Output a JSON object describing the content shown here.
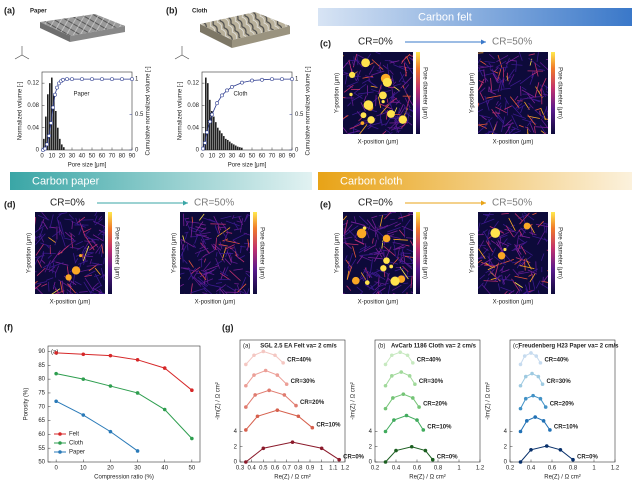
{
  "chart_data": [
    {
      "type": "histogram",
      "panel": "(a)",
      "title": "Paper",
      "annotation": "Paper",
      "xlabel": "Pore size [μm]",
      "ylabel": "Normalized volume [-]",
      "y2label": "Cumulative normalized volume [-]",
      "bins": [
        1,
        3,
        5,
        7,
        9,
        11,
        13,
        15,
        17,
        19,
        21,
        23
      ],
      "counts": [
        0.02,
        0.06,
        0.1,
        0.12,
        0.13,
        0.1,
        0.07,
        0.04,
        0.02,
        0.01,
        0.005
      ],
      "color": "#222222",
      "cumulative": {
        "x": [
          1,
          3,
          5,
          7,
          9,
          11,
          13,
          15,
          17,
          19,
          21,
          25,
          30,
          40,
          50,
          60,
          70,
          80,
          90
        ],
        "values": [
          0,
          0.02,
          0.08,
          0.2,
          0.38,
          0.6,
          0.78,
          0.88,
          0.94,
          0.97,
          0.99,
          1,
          1,
          1,
          1,
          1,
          1,
          1,
          1
        ],
        "color": "#2b3a8f"
      },
      "xlim": [
        0,
        90
      ],
      "xticks": [
        0,
        10,
        20,
        30,
        40,
        50,
        60,
        70,
        80,
        90
      ],
      "ylim": [
        0,
        0.14
      ],
      "yticks": [
        0,
        0.04,
        0.08,
        0.12
      ],
      "y2lim": [
        0,
        1.1
      ],
      "y2ticks": [
        0,
        0.5,
        1
      ]
    },
    {
      "type": "histogram",
      "panel": "(b)",
      "title": "Cloth",
      "annotation": "Cloth",
      "xlabel": "Pore size [μm]",
      "ylabel": "Normalized volume [-]",
      "y2label": "Cumulative normalized volume [-]",
      "bins": [
        1,
        3,
        5,
        7,
        9,
        11,
        13,
        15,
        17,
        19,
        21,
        23,
        25,
        27,
        29,
        31,
        33,
        35,
        37,
        39,
        41
      ],
      "counts": [
        0.03,
        0.13,
        0.12,
        0.09,
        0.07,
        0.06,
        0.05,
        0.04,
        0.035,
        0.03,
        0.025,
        0.02,
        0.018,
        0.015,
        0.012,
        0.01,
        0.008,
        0.006,
        0.005,
        0.004
      ],
      "color": "#222222",
      "cumulative": {
        "x": [
          1,
          3,
          5,
          8,
          10,
          15,
          20,
          25,
          30,
          40,
          50,
          60,
          70,
          80,
          90
        ],
        "values": [
          0.02,
          0.1,
          0.25,
          0.4,
          0.5,
          0.66,
          0.77,
          0.84,
          0.89,
          0.95,
          0.98,
          0.99,
          1,
          1,
          1
        ],
        "color": "#2b3a8f"
      },
      "xlim": [
        0,
        90
      ],
      "xticks": [
        0,
        10,
        20,
        30,
        40,
        50,
        60,
        70,
        80,
        90
      ],
      "ylim": [
        0,
        0.14
      ],
      "yticks": [
        0,
        0.04,
        0.08,
        0.12
      ],
      "y2lim": [
        0,
        1.1
      ],
      "y2ticks": [
        0,
        0.5,
        1
      ]
    },
    {
      "type": "line",
      "panel": "(f)",
      "subpanel": "(a)",
      "xlabel": "Compression ratio (%)",
      "ylabel": "Porosity (%)",
      "x": [
        0,
        10,
        20,
        30,
        40,
        50
      ],
      "series": [
        {
          "name": "Felt",
          "color": "#d62728",
          "values": [
            89.5,
            89,
            88.5,
            87,
            84,
            76
          ]
        },
        {
          "name": "Cloth",
          "color": "#2e9e4f",
          "values": [
            82,
            80,
            77.5,
            75,
            69,
            58.5
          ]
        },
        {
          "name": "Paper",
          "color": "#2a7ab8",
          "values": [
            72,
            67,
            61,
            54,
            null,
            null
          ]
        }
      ],
      "xlim": [
        -3,
        53
      ],
      "xticks": [
        0,
        10,
        20,
        30,
        40,
        50
      ],
      "ylim": [
        50,
        92
      ],
      "yticks": [
        50,
        55,
        60,
        65,
        70,
        75,
        80,
        85,
        90
      ],
      "legend": "lower left",
      "markers": true
    },
    {
      "type": "line",
      "panel": "(g)",
      "subpanel": "(a)",
      "title": "SGL 2.5 EA Felt  va= 2 cm/s",
      "title_color": "#d62728",
      "xlabel": "Re(Z) / Ω cm²",
      "ylabel": "-Im(Z) / Ω cm²",
      "series": [
        {
          "name": "CR=40%",
          "color": "#f4c7c2",
          "x": [
            0.35,
            0.42,
            0.5,
            0.6,
            0.67
          ],
          "values": [
            12.8,
            14,
            14.5,
            14,
            13
          ]
        },
        {
          "name": "CR=30%",
          "color": "#ec9f97",
          "x": [
            0.35,
            0.42,
            0.52,
            0.62,
            0.7
          ],
          "values": [
            10,
            11.4,
            12,
            11.4,
            10.2
          ]
        },
        {
          "name": "CR=20%",
          "color": "#e07b6f",
          "x": [
            0.35,
            0.43,
            0.55,
            0.68,
            0.78
          ],
          "values": [
            7.2,
            8.8,
            9.4,
            8.8,
            7.4
          ]
        },
        {
          "name": "CR=10%",
          "color": "#d6604d",
          "x": [
            0.35,
            0.45,
            0.62,
            0.8,
            0.92
          ],
          "values": [
            4.2,
            6,
            6.8,
            6,
            4.5
          ]
        },
        {
          "name": "CR=0%",
          "color": "#8b1a2b",
          "x": [
            0.35,
            0.5,
            0.75,
            1,
            1.15
          ],
          "values": [
            0,
            1.8,
            2.6,
            1.8,
            0.3
          ]
        }
      ],
      "xlim": [
        0.3,
        1.2
      ],
      "xticks": [
        0.3,
        0.4,
        0.5,
        0.6,
        0.7,
        0.8,
        0.9,
        1,
        1.1,
        1.2
      ],
      "ylim": [
        0,
        16
      ],
      "yticks": [
        0,
        2,
        4
      ],
      "markers": true
    },
    {
      "type": "line",
      "subpanel": "(b)",
      "title": "AvCarb 1186 Cloth  va= 2 cm/s",
      "title_color": "#2e9e4f",
      "xlabel": "Re(Z) / Ω cm²",
      "ylabel": "-Im(Z) / Ω cm²",
      "series": [
        {
          "name": "CR=40%",
          "color": "#c7e9c0",
          "x": [
            0.3,
            0.36,
            0.44,
            0.51,
            0.56
          ],
          "values": [
            12.8,
            14,
            14.4,
            14,
            13
          ]
        },
        {
          "name": "CR=30%",
          "color": "#a1d99b",
          "x": [
            0.3,
            0.36,
            0.45,
            0.53,
            0.58
          ],
          "values": [
            10,
            11.3,
            11.8,
            11.3,
            10.2
          ]
        },
        {
          "name": "CR=20%",
          "color": "#74c476",
          "x": [
            0.3,
            0.37,
            0.47,
            0.56,
            0.62
          ],
          "values": [
            7,
            8.4,
            8.9,
            8.4,
            7.2
          ]
        },
        {
          "name": "CR=10%",
          "color": "#41ab5d",
          "x": [
            0.3,
            0.38,
            0.5,
            0.6,
            0.66
          ],
          "values": [
            4,
            5.5,
            6.1,
            5.5,
            4.2
          ]
        },
        {
          "name": "CR=0%",
          "color": "#1b5e20",
          "x": [
            0.3,
            0.4,
            0.55,
            0.68,
            0.75
          ],
          "values": [
            0,
            1.5,
            2,
            1.5,
            0.3
          ]
        }
      ],
      "xlim": [
        0.2,
        1.2
      ],
      "xticks": [
        0.2,
        0.4,
        0.6,
        0.8,
        1,
        1.2
      ],
      "ylim": [
        0,
        16
      ],
      "yticks": [
        0,
        2,
        4
      ],
      "markers": true
    },
    {
      "type": "line",
      "subpanel": "(c)",
      "title": "Freudenberg H23 Paper  va= 2 cm/s",
      "title_color": "#2a7ab8",
      "xlabel": "Re(Z) / Ω cm²",
      "ylabel": "-Im(Z) / Ω cm²",
      "series": [
        {
          "name": "CR=40%",
          "color": "#c6dbef",
          "x": [
            0.3,
            0.34,
            0.4,
            0.45,
            0.49
          ],
          "values": [
            12.8,
            13.9,
            14.3,
            13.9,
            13
          ]
        },
        {
          "name": "CR=30%",
          "color": "#9ecae1",
          "x": [
            0.3,
            0.35,
            0.41,
            0.47,
            0.51
          ],
          "values": [
            10,
            11.2,
            11.6,
            11.2,
            10.2
          ]
        },
        {
          "name": "CR=20%",
          "color": "#4292c6",
          "x": [
            0.3,
            0.35,
            0.42,
            0.49,
            0.54
          ],
          "values": [
            7,
            8.3,
            8.7,
            8.3,
            7.2
          ]
        },
        {
          "name": "CR=10%",
          "color": "#2171b5",
          "x": [
            0.3,
            0.36,
            0.44,
            0.52,
            0.58
          ],
          "values": [
            4,
            5.4,
            5.9,
            5.4,
            4.2
          ]
        },
        {
          "name": "CR=0%",
          "color": "#08306b",
          "x": [
            0.3,
            0.4,
            0.55,
            0.68,
            0.8
          ],
          "values": [
            0,
            1.6,
            2.1,
            1.6,
            0.3
          ]
        }
      ],
      "xlim": [
        0.2,
        1.2
      ],
      "xticks": [
        0.2,
        0.4,
        0.6,
        0.8,
        1,
        1.2
      ],
      "ylim": [
        0,
        16
      ],
      "yticks": [
        0,
        2,
        4
      ],
      "markers": true
    }
  ],
  "image_panels": [
    {
      "panel": "(c)",
      "banner": "Carbon felt",
      "color": "#3a78c9",
      "from": "CR=0%",
      "to": "CR=50%",
      "xlabel": "X-position (μm)",
      "ylabel": "Y-position (μm)",
      "cbar_label": "Pore diameter (μm)"
    },
    {
      "panel": "(d)",
      "banner": "Carbon paper",
      "color": "#3aa6a6",
      "from": "CR=0%",
      "to": "CR=50%",
      "xlabel": "X-position (μm)",
      "ylabel": "Y-position (μm)",
      "cbar_label": "Pore diameter (μm)"
    },
    {
      "panel": "(e)",
      "banner": "Carbon cloth",
      "color": "#e8a317",
      "from": "CR=0%",
      "to": "CR=50%",
      "xlabel": "X-position (μm)",
      "ylabel": "Y-position (μm)",
      "cbar_label": "Pore diameter (μm)"
    }
  ]
}
